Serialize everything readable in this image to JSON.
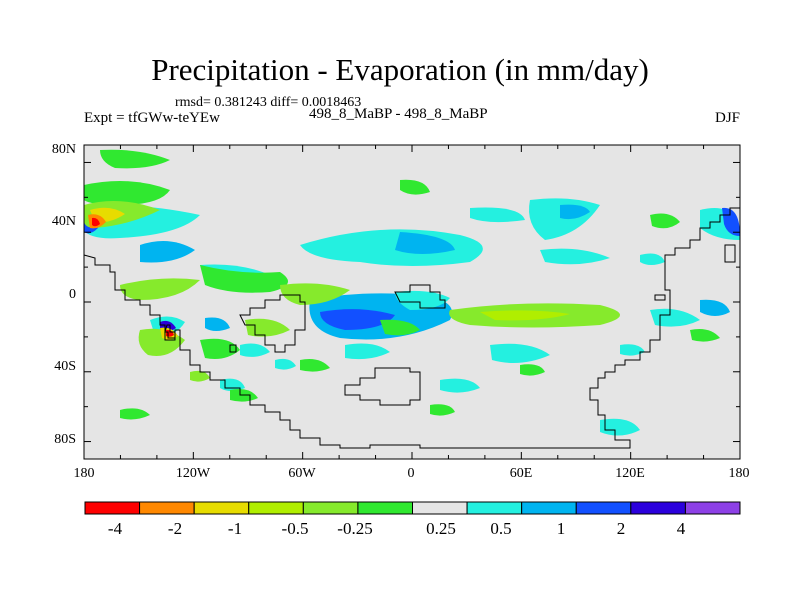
{
  "header": {
    "title": "Precipitation - Evaporation (in mm/day)",
    "stats": "rmsd= 0.381243 diff= 0.0018463",
    "expt": "Expt = tfGWw-teYEw",
    "case": "498_8_MaBP - 498_8_MaBP",
    "season": "DJF"
  },
  "axes": {
    "lat_labels": [
      "80N",
      "40N",
      "0",
      "40S",
      "80S"
    ],
    "lon_labels": [
      "180",
      "120W",
      "60W",
      "0",
      "60E",
      "120E",
      "180"
    ]
  },
  "colorbar": {
    "labels": [
      "-4",
      "-2",
      "-1",
      "-0.5",
      "-0.25",
      "0.25",
      "0.5",
      "1",
      "2",
      "4"
    ],
    "colors": [
      "#fe0000",
      "#ff8800",
      "#e7dc00",
      "#b0ee00",
      "#86ea2c",
      "#30e830",
      "#e5e5e5",
      "#24f0e0",
      "#00b4f0",
      "#1250ff",
      "#2b00dc",
      "#8d40e6"
    ]
  },
  "palette": {
    "neutral": "#e5e5e5",
    "frame": "#000000"
  }
}
